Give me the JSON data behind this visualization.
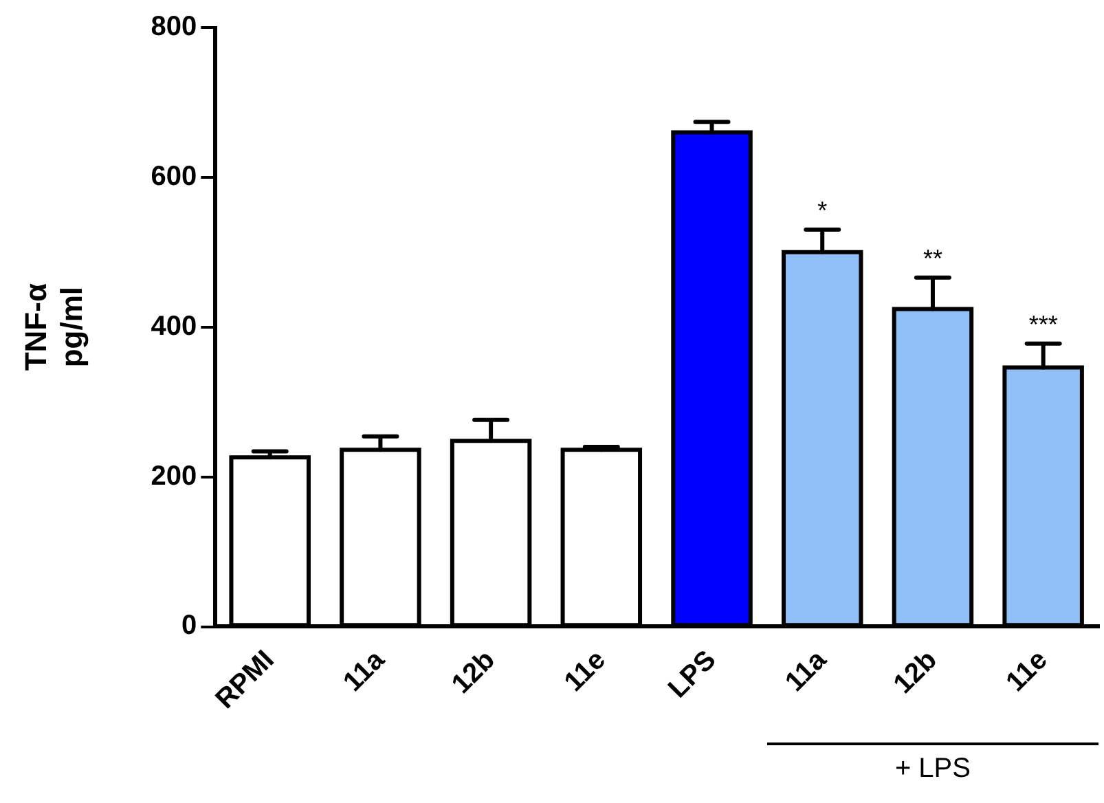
{
  "chart_data": {
    "type": "bar",
    "ylabel": "TNF-α pg/ml",
    "categories": [
      "RPMI",
      "11a",
      "12b",
      "11e",
      "LPS",
      "11a",
      "12b",
      "11e"
    ],
    "values": [
      226,
      236,
      248,
      236,
      660,
      500,
      424,
      346
    ],
    "errors": [
      [
        226,
        234
      ],
      [
        236,
        254
      ],
      [
        248,
        276
      ],
      [
        236,
        240
      ],
      [
        660,
        674
      ],
      [
        500,
        530
      ],
      [
        424,
        466
      ],
      [
        346,
        378
      ]
    ],
    "colors": [
      "#ffffff",
      "#ffffff",
      "#ffffff",
      "#ffffff",
      "#0000ff",
      "#90bff8",
      "#90bff8",
      "#90bff8"
    ],
    "ylim": [
      0,
      800
    ],
    "yticks": [
      0,
      200,
      400,
      600,
      800
    ],
    "grid": false,
    "legend": false,
    "annotations": [
      "*",
      "**",
      "***",
      "+ LPS"
    ]
  }
}
